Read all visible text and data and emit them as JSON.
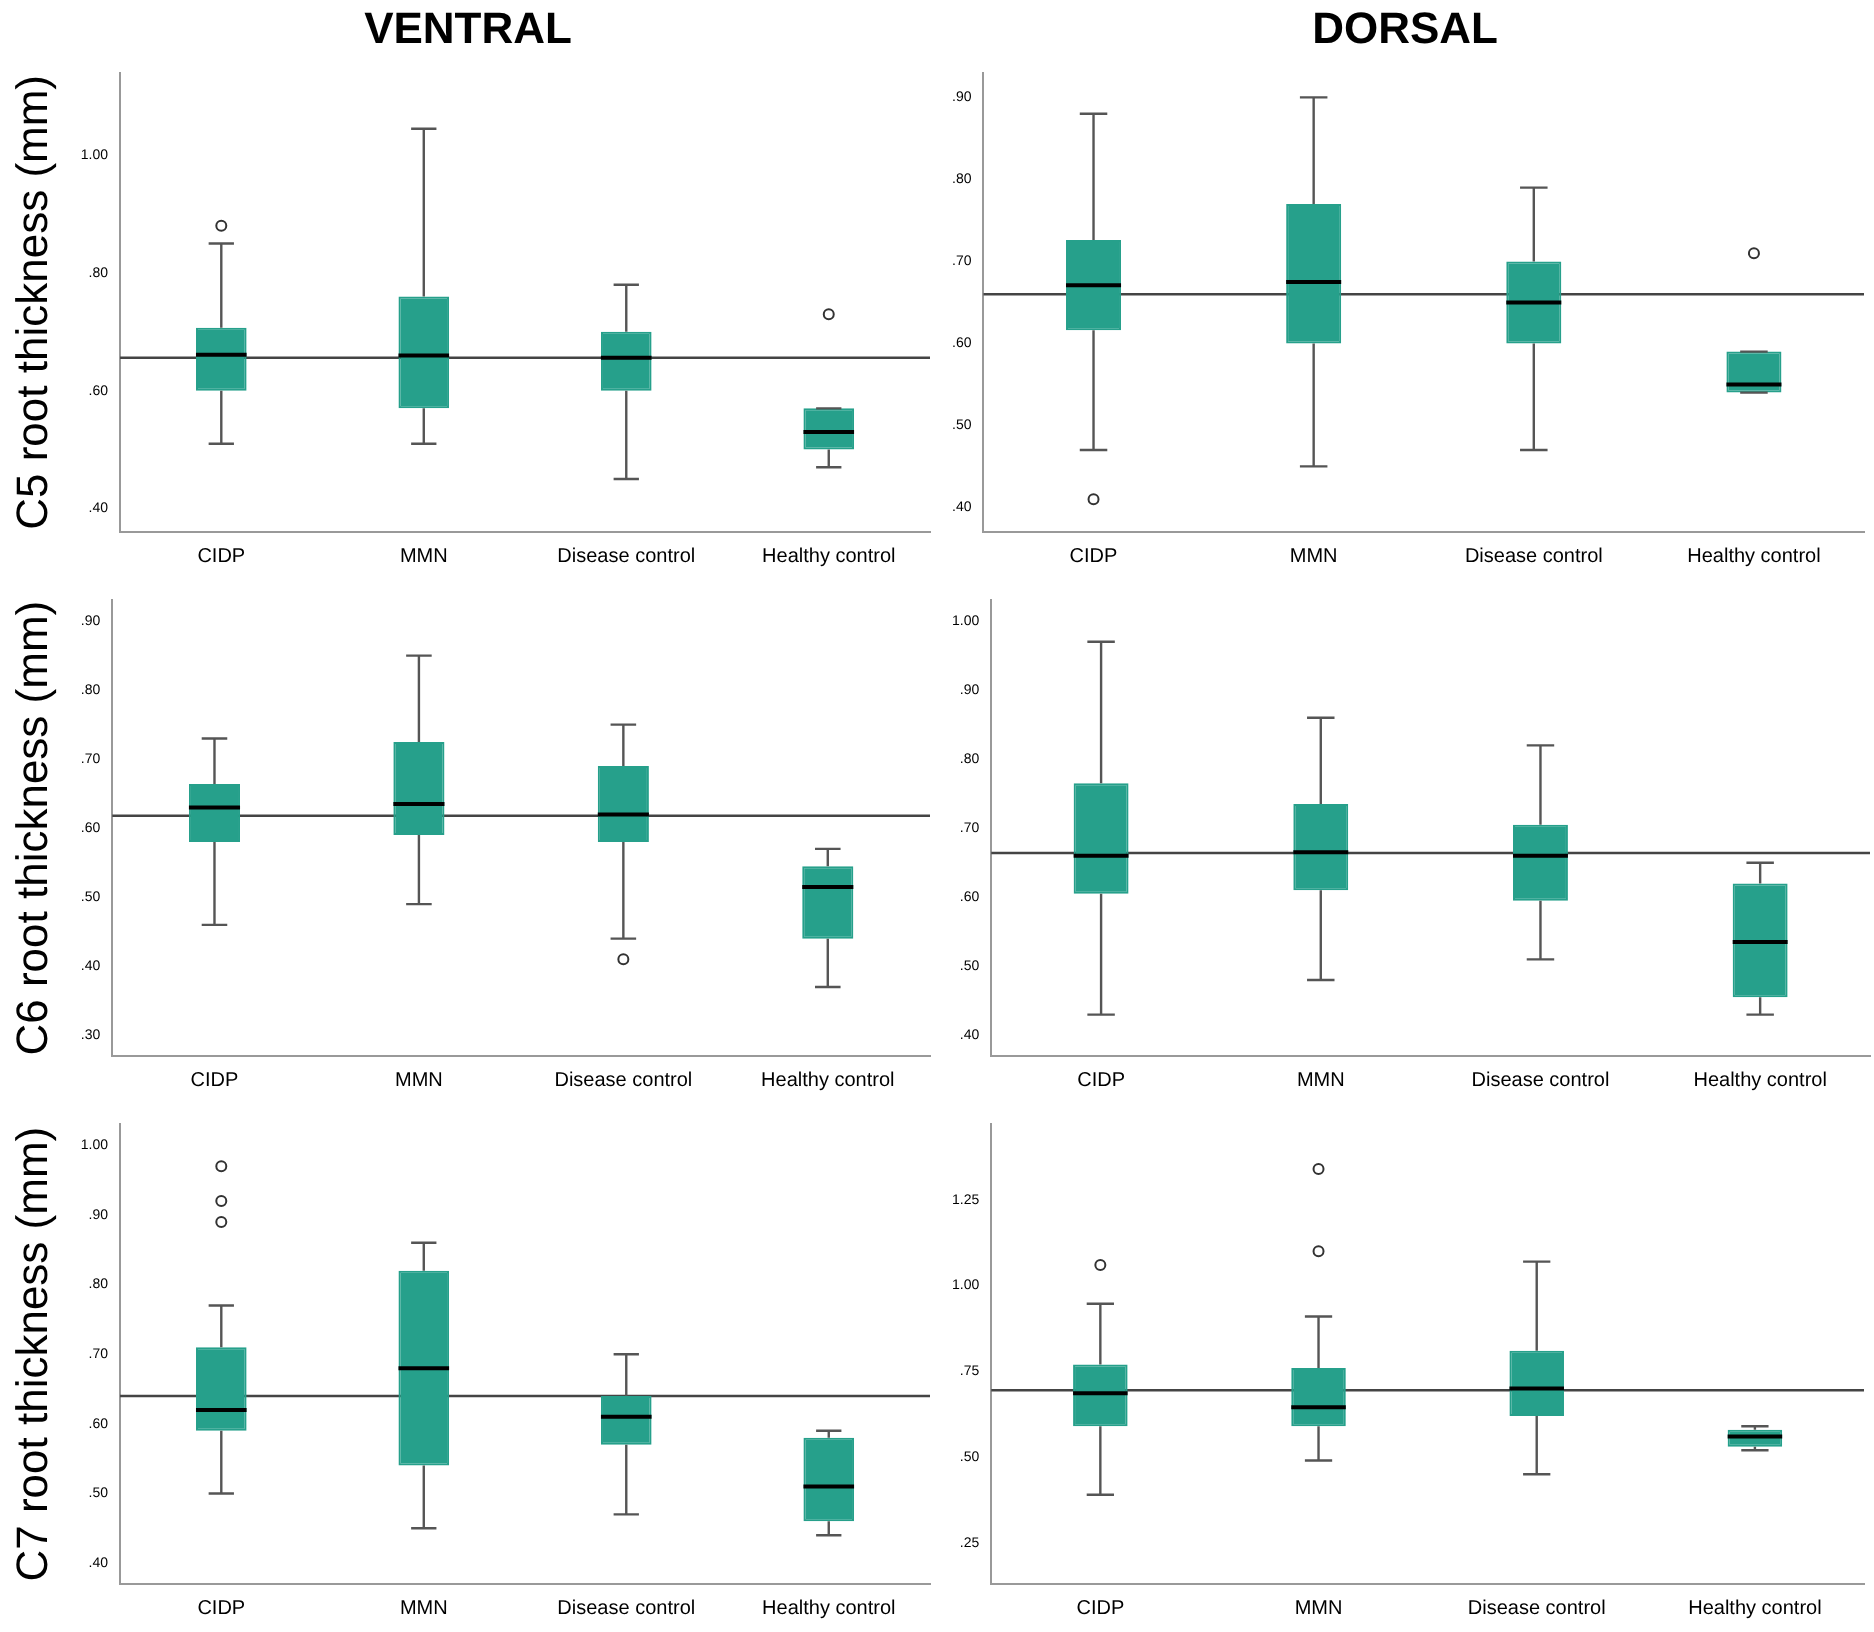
{
  "chart_data": [
    {
      "type": "box",
      "title": "VENTRAL",
      "ylabel": "C5 root thickness (mm)",
      "categories": [
        "CIDP",
        "MMN",
        "Disease control",
        "Healthy control"
      ],
      "color": "#26a08b",
      "grid": false,
      "legend": false,
      "ylim": [
        0.36,
        1.14
      ],
      "yticks": [
        {
          "value": 0.4,
          "label": ".40"
        },
        {
          "value": 0.6,
          "label": ".60"
        },
        {
          "value": 0.8,
          "label": ".80"
        },
        {
          "value": 1.0,
          "label": "1.00"
        }
      ],
      "ref_lines": [
        {
          "axis": "y",
          "value": 0.656
        }
      ],
      "boxes": [
        {
          "low": 0.51,
          "q1": 0.6,
          "median": 0.661,
          "q3": 0.707,
          "high": 0.85,
          "outliers": [
            0.88
          ]
        },
        {
          "low": 0.51,
          "q1": 0.57,
          "median": 0.66,
          "q3": 0.76,
          "high": 1.045
        },
        {
          "low": 0.45,
          "q1": 0.6,
          "median": 0.656,
          "q3": 0.7,
          "high": 0.78
        },
        {
          "low": 0.47,
          "q1": 0.5,
          "median": 0.53,
          "q3": 0.57,
          "high": 0.57,
          "outliers": [
            0.73
          ]
        }
      ]
    },
    {
      "type": "box",
      "title": "DORSAL",
      "categories": [
        "CIDP",
        "MMN",
        "Disease control",
        "Healthy control"
      ],
      "color": "#26a08b",
      "grid": false,
      "legend": false,
      "ylim": [
        0.37,
        0.93
      ],
      "yticks": [
        {
          "value": 0.4,
          "label": ".40"
        },
        {
          "value": 0.5,
          "label": ".50"
        },
        {
          "value": 0.6,
          "label": ".60"
        },
        {
          "value": 0.7,
          "label": ".70"
        },
        {
          "value": 0.8,
          "label": ".80"
        },
        {
          "value": 0.9,
          "label": ".90"
        }
      ],
      "ref_lines": [
        {
          "axis": "y",
          "value": 0.66
        }
      ],
      "boxes": [
        {
          "low": 0.47,
          "q1": 0.616,
          "median": 0.671,
          "q3": 0.726,
          "high": 0.88,
          "outliers": [
            0.41
          ]
        },
        {
          "low": 0.45,
          "q1": 0.6,
          "median": 0.675,
          "q3": 0.77,
          "high": 0.9
        },
        {
          "low": 0.47,
          "q1": 0.6,
          "median": 0.65,
          "q3": 0.7,
          "high": 0.79
        },
        {
          "low": 0.54,
          "q1": 0.54,
          "median": 0.55,
          "q3": 0.59,
          "high": 0.59,
          "outliers": [
            0.71
          ]
        }
      ]
    },
    {
      "type": "box",
      "ylabel": "C6 root thickness (mm)",
      "categories": [
        "CIDP",
        "MMN",
        "Disease control",
        "Healthy control"
      ],
      "color": "#26a08b",
      "grid": false,
      "legend": false,
      "ylim": [
        0.27,
        0.93
      ],
      "yticks": [
        {
          "value": 0.3,
          "label": ".30"
        },
        {
          "value": 0.4,
          "label": ".40"
        },
        {
          "value": 0.5,
          "label": ".50"
        },
        {
          "value": 0.6,
          "label": ".60"
        },
        {
          "value": 0.7,
          "label": ".70"
        },
        {
          "value": 0.8,
          "label": ".80"
        },
        {
          "value": 0.9,
          "label": ".90"
        }
      ],
      "ref_lines": [
        {
          "axis": "y",
          "value": 0.618
        }
      ],
      "boxes": [
        {
          "low": 0.46,
          "q1": 0.58,
          "median": 0.63,
          "q3": 0.664,
          "high": 0.73
        },
        {
          "low": 0.49,
          "q1": 0.59,
          "median": 0.635,
          "q3": 0.725,
          "high": 0.85
        },
        {
          "low": 0.44,
          "q1": 0.58,
          "median": 0.62,
          "q3": 0.69,
          "high": 0.75,
          "outliers": [
            0.41
          ]
        },
        {
          "low": 0.37,
          "q1": 0.44,
          "median": 0.515,
          "q3": 0.545,
          "high": 0.57
        }
      ]
    },
    {
      "type": "box",
      "categories": [
        "CIDP",
        "MMN",
        "Disease control",
        "Healthy control"
      ],
      "color": "#26a08b",
      "grid": false,
      "legend": false,
      "ylim": [
        0.37,
        1.03
      ],
      "yticks": [
        {
          "value": 0.4,
          "label": ".40"
        },
        {
          "value": 0.5,
          "label": ".50"
        },
        {
          "value": 0.6,
          "label": ".60"
        },
        {
          "value": 0.7,
          "label": ".70"
        },
        {
          "value": 0.8,
          "label": ".80"
        },
        {
          "value": 0.9,
          "label": ".90"
        },
        {
          "value": 1.0,
          "label": "1.00"
        }
      ],
      "ref_lines": [
        {
          "axis": "y",
          "value": 0.664
        }
      ],
      "boxes": [
        {
          "low": 0.43,
          "q1": 0.605,
          "median": 0.66,
          "q3": 0.765,
          "high": 0.97
        },
        {
          "low": 0.48,
          "q1": 0.61,
          "median": 0.665,
          "q3": 0.735,
          "high": 0.86
        },
        {
          "low": 0.51,
          "q1": 0.595,
          "median": 0.66,
          "q3": 0.705,
          "high": 0.82
        },
        {
          "low": 0.43,
          "q1": 0.455,
          "median": 0.535,
          "q3": 0.62,
          "high": 0.65
        }
      ]
    },
    {
      "type": "box",
      "ylabel": "C7 root thickness (mm)",
      "categories": [
        "CIDP",
        "MMN",
        "Disease control",
        "Healthy control"
      ],
      "color": "#26a08b",
      "grid": false,
      "legend": false,
      "ylim": [
        0.37,
        1.03
      ],
      "yticks": [
        {
          "value": 0.4,
          "label": ".40"
        },
        {
          "value": 0.5,
          "label": ".50"
        },
        {
          "value": 0.6,
          "label": ".60"
        },
        {
          "value": 0.7,
          "label": ".70"
        },
        {
          "value": 0.8,
          "label": ".80"
        },
        {
          "value": 0.9,
          "label": ".90"
        },
        {
          "value": 1.0,
          "label": "1.00"
        }
      ],
      "ref_lines": [
        {
          "axis": "y",
          "value": 0.64
        }
      ],
      "boxes": [
        {
          "low": 0.5,
          "q1": 0.59,
          "median": 0.62,
          "q3": 0.71,
          "high": 0.77,
          "outliers": [
            0.97,
            0.92,
            0.89
          ]
        },
        {
          "low": 0.45,
          "q1": 0.54,
          "median": 0.68,
          "q3": 0.82,
          "high": 0.86
        },
        {
          "low": 0.47,
          "q1": 0.57,
          "median": 0.61,
          "q3": 0.64,
          "high": 0.7
        },
        {
          "low": 0.44,
          "q1": 0.46,
          "median": 0.51,
          "q3": 0.58,
          "high": 0.59
        }
      ]
    },
    {
      "type": "box",
      "categories": [
        "CIDP",
        "MMN",
        "Disease control",
        "Healthy control"
      ],
      "color": "#26a08b",
      "grid": false,
      "legend": false,
      "ylim": [
        0.13,
        1.47
      ],
      "yticks": [
        {
          "value": 0.25,
          "label": ".25"
        },
        {
          "value": 0.5,
          "label": ".50"
        },
        {
          "value": 0.75,
          "label": ".75"
        },
        {
          "value": 1.0,
          "label": "1.00"
        },
        {
          "value": 1.25,
          "label": "1.25"
        }
      ],
      "ref_lines": [
        {
          "axis": "y",
          "value": 0.695
        }
      ],
      "boxes": [
        {
          "low": 0.39,
          "q1": 0.59,
          "median": 0.686,
          "q3": 0.77,
          "high": 0.947,
          "outliers": [
            1.06
          ]
        },
        {
          "low": 0.49,
          "q1": 0.59,
          "median": 0.645,
          "q3": 0.76,
          "high": 0.91,
          "outliers": [
            1.1,
            1.34
          ]
        },
        {
          "low": 0.45,
          "q1": 0.62,
          "median": 0.7,
          "q3": 0.81,
          "high": 1.07
        },
        {
          "low": 0.52,
          "q1": 0.53,
          "median": 0.56,
          "q3": 0.58,
          "high": 0.59
        }
      ]
    }
  ]
}
